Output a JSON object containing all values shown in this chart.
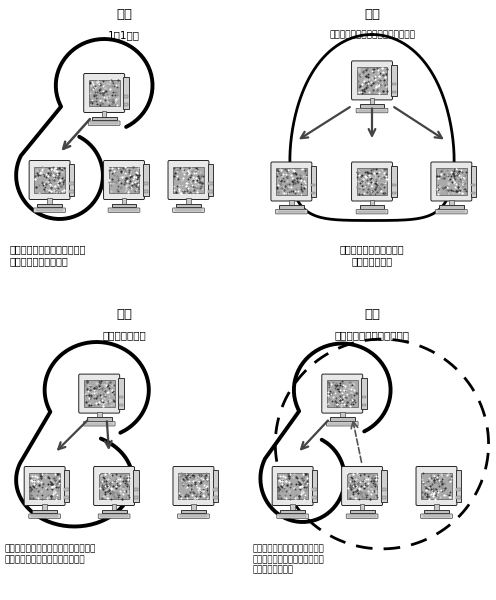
{
  "panel_titles": [
    "单播",
    "多播",
    "多播",
    "任播"
  ],
  "panel_subtitles": [
    "1对1通信",
    "所有计算机（限同一个数据链路内）",
    "特定组内的通信",
    "特定组内的任意一台计算机"
  ],
  "panel_desc": [
    "好比学生与老师之间、同学与\n同学之间一对一对话。",
    "好比全校早会上校长面向\n全体师生讲话。",
    "好比一个学校只针对一年级一班的同学\n下达通知或对各委员会下发文件。",
    "好比老师想在一年级一班找一个\n同学发一下学习材料，而某个学\n生就过来帮忙了。"
  ]
}
